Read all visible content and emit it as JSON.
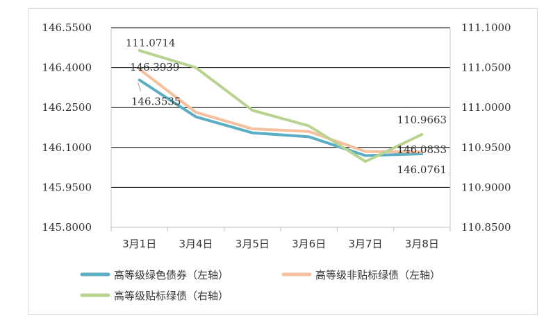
{
  "chart_data": {
    "type": "line",
    "categories": [
      "3月1日",
      "3月4日",
      "3月5日",
      "3月6日",
      "3月7日",
      "3月8日"
    ],
    "y_left": {
      "ylim": [
        145.8,
        146.55
      ],
      "ticks": [
        "145.8000",
        "145.9500",
        "146.1000",
        "146.2500",
        "146.4000",
        "146.5500"
      ],
      "tick_values": [
        145.8,
        145.95,
        146.1,
        146.25,
        146.4,
        146.55
      ]
    },
    "y_right": {
      "ylim": [
        110.85,
        111.1
      ],
      "ticks": [
        "110.8500",
        "110.9000",
        "110.9500",
        "111.0000",
        "111.0500",
        "111.1000"
      ],
      "tick_values": [
        110.85,
        110.9,
        110.95,
        111.0,
        111.05,
        111.1
      ]
    },
    "grid": true,
    "legend_position": "bottom",
    "series": [
      {
        "name": "高等级绿色债券（左轴）",
        "axis": "left",
        "color": "#5aaec4",
        "values": [
          146.3535,
          146.215,
          146.155,
          146.14,
          146.0695,
          146.0761
        ]
      },
      {
        "name": "高等级非贴标绿债（左轴）",
        "axis": "left",
        "color": "#f6bf9e",
        "values": [
          146.3939,
          146.232,
          146.17,
          146.16,
          146.085,
          146.0833
        ]
      },
      {
        "name": "高等级贴标绿债（右轴）",
        "axis": "right",
        "color": "#b8d38f",
        "values": [
          111.0714,
          111.05,
          110.9965,
          110.977,
          110.9325,
          110.9663
        ]
      }
    ],
    "data_labels": [
      {
        "series": 2,
        "index": 0,
        "text": "111.0714"
      },
      {
        "series": 1,
        "index": 0,
        "text": "146.3939"
      },
      {
        "series": 0,
        "index": 0,
        "text": "146.3535"
      },
      {
        "series": 2,
        "index": 5,
        "text": "110.9663"
      },
      {
        "series": 1,
        "index": 5,
        "text": "146.0833"
      },
      {
        "series": 0,
        "index": 5,
        "text": "146.0761"
      }
    ]
  }
}
